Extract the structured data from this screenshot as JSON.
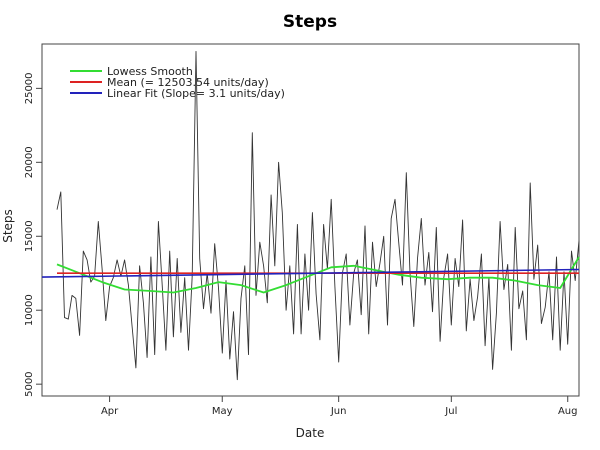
{
  "chart_data": {
    "type": "line",
    "title": "Steps",
    "xlabel": "Date",
    "ylabel": "Steps",
    "xlim": [
      "2013-03-14",
      "2013-08-04"
    ],
    "ylim": [
      4200,
      28000
    ],
    "x_ticks": [
      {
        "date": "2013-04-01",
        "label": "Apr"
      },
      {
        "date": "2013-05-01",
        "label": "May"
      },
      {
        "date": "2013-06-01",
        "label": "Jun"
      },
      {
        "date": "2013-07-01",
        "label": "Jul"
      },
      {
        "date": "2013-08-01",
        "label": "Aug"
      }
    ],
    "y_ticks": [
      5000,
      10000,
      15000,
      20000,
      25000
    ],
    "grid": false,
    "legend_position": "top-left",
    "legend": [
      {
        "label": "Lowess Smooth",
        "color": "#33dd33"
      },
      {
        "label": "Mean (= 12503.54  units/day)",
        "color": "#dd2222"
      },
      {
        "label": "Linear Fit (Slope= 3.1 units/day)",
        "color": "#2222bb"
      }
    ],
    "series": [
      {
        "name": "Steps",
        "color": "#333333",
        "points": [
          [
            "2013-03-18",
            16800
          ],
          [
            "2013-03-19",
            18000
          ],
          [
            "2013-03-20",
            9500
          ],
          [
            "2013-03-21",
            9400
          ],
          [
            "2013-03-22",
            11000
          ],
          [
            "2013-03-23",
            10800
          ],
          [
            "2013-03-24",
            8300
          ],
          [
            "2013-03-25",
            14000
          ],
          [
            "2013-03-26",
            13400
          ],
          [
            "2013-03-27",
            11900
          ],
          [
            "2013-03-28",
            12300
          ],
          [
            "2013-03-29",
            16000
          ],
          [
            "2013-03-30",
            12800
          ],
          [
            "2013-03-31",
            9300
          ],
          [
            "2013-04-01",
            11600
          ],
          [
            "2013-04-02",
            12200
          ],
          [
            "2013-04-03",
            13400
          ],
          [
            "2013-04-04",
            12300
          ],
          [
            "2013-04-05",
            13400
          ],
          [
            "2013-04-06",
            11700
          ],
          [
            "2013-04-07",
            8900
          ],
          [
            "2013-04-08",
            6100
          ],
          [
            "2013-04-09",
            13000
          ],
          [
            "2013-04-10",
            10500
          ],
          [
            "2013-04-11",
            6800
          ],
          [
            "2013-04-12",
            13600
          ],
          [
            "2013-04-13",
            7000
          ],
          [
            "2013-04-14",
            16000
          ],
          [
            "2013-04-15",
            11700
          ],
          [
            "2013-04-16",
            7300
          ],
          [
            "2013-04-17",
            14000
          ],
          [
            "2013-04-18",
            8200
          ],
          [
            "2013-04-19",
            13500
          ],
          [
            "2013-04-20",
            8500
          ],
          [
            "2013-04-21",
            12200
          ],
          [
            "2013-04-22",
            7300
          ],
          [
            "2013-04-23",
            12300
          ],
          [
            "2013-04-24",
            27500
          ],
          [
            "2013-04-25",
            13500
          ],
          [
            "2013-04-26",
            10100
          ],
          [
            "2013-04-27",
            12500
          ],
          [
            "2013-04-28",
            9800
          ],
          [
            "2013-04-29",
            14500
          ],
          [
            "2013-04-30",
            11500
          ],
          [
            "2013-05-01",
            7100
          ],
          [
            "2013-05-02",
            12000
          ],
          [
            "2013-05-03",
            6700
          ],
          [
            "2013-05-04",
            9900
          ],
          [
            "2013-05-05",
            5300
          ],
          [
            "2013-05-06",
            10800
          ],
          [
            "2013-05-07",
            13000
          ],
          [
            "2013-05-08",
            7000
          ],
          [
            "2013-05-09",
            22000
          ],
          [
            "2013-05-10",
            11000
          ],
          [
            "2013-05-11",
            14600
          ],
          [
            "2013-05-12",
            13000
          ],
          [
            "2013-05-13",
            10500
          ],
          [
            "2013-05-14",
            17800
          ],
          [
            "2013-05-15",
            13000
          ],
          [
            "2013-05-16",
            20000
          ],
          [
            "2013-05-17",
            16600
          ],
          [
            "2013-05-18",
            10000
          ],
          [
            "2013-05-19",
            13000
          ],
          [
            "2013-05-20",
            8400
          ],
          [
            "2013-05-21",
            15800
          ],
          [
            "2013-05-22",
            8400
          ],
          [
            "2013-05-23",
            13800
          ],
          [
            "2013-05-24",
            10000
          ],
          [
            "2013-05-25",
            16600
          ],
          [
            "2013-05-26",
            11100
          ],
          [
            "2013-05-27",
            8000
          ],
          [
            "2013-05-28",
            15800
          ],
          [
            "2013-05-29",
            12800
          ],
          [
            "2013-05-30",
            17500
          ],
          [
            "2013-05-31",
            11600
          ],
          [
            "2013-06-01",
            6500
          ],
          [
            "2013-06-02",
            12500
          ],
          [
            "2013-06-03",
            13800
          ],
          [
            "2013-06-04",
            9000
          ],
          [
            "2013-06-05",
            12500
          ],
          [
            "2013-06-06",
            13400
          ],
          [
            "2013-06-07",
            9700
          ],
          [
            "2013-06-08",
            15700
          ],
          [
            "2013-06-09",
            8400
          ],
          [
            "2013-06-10",
            14600
          ],
          [
            "2013-06-11",
            11600
          ],
          [
            "2013-06-12",
            13200
          ],
          [
            "2013-06-13",
            15000
          ],
          [
            "2013-06-14",
            9000
          ],
          [
            "2013-06-15",
            16200
          ],
          [
            "2013-06-16",
            17500
          ],
          [
            "2013-06-17",
            14600
          ],
          [
            "2013-06-18",
            11700
          ],
          [
            "2013-06-19",
            19300
          ],
          [
            "2013-06-20",
            12500
          ],
          [
            "2013-06-21",
            8900
          ],
          [
            "2013-06-22",
            13500
          ],
          [
            "2013-06-23",
            16200
          ],
          [
            "2013-06-24",
            11700
          ],
          [
            "2013-06-25",
            13900
          ],
          [
            "2013-06-26",
            9900
          ],
          [
            "2013-06-27",
            15600
          ],
          [
            "2013-06-28",
            7900
          ],
          [
            "2013-06-29",
            12200
          ],
          [
            "2013-06-30",
            13800
          ],
          [
            "2013-07-01",
            9000
          ],
          [
            "2013-07-02",
            13500
          ],
          [
            "2013-07-03",
            11600
          ],
          [
            "2013-07-04",
            16100
          ],
          [
            "2013-07-05",
            8600
          ],
          [
            "2013-07-06",
            12100
          ],
          [
            "2013-07-07",
            9300
          ],
          [
            "2013-07-08",
            10900
          ],
          [
            "2013-07-09",
            13800
          ],
          [
            "2013-07-10",
            7600
          ],
          [
            "2013-07-11",
            12200
          ],
          [
            "2013-07-12",
            6000
          ],
          [
            "2013-07-13",
            9800
          ],
          [
            "2013-07-14",
            16000
          ],
          [
            "2013-07-15",
            11400
          ],
          [
            "2013-07-16",
            13100
          ],
          [
            "2013-07-17",
            7300
          ],
          [
            "2013-07-18",
            15600
          ],
          [
            "2013-07-19",
            10100
          ],
          [
            "2013-07-20",
            11300
          ],
          [
            "2013-07-21",
            8000
          ],
          [
            "2013-07-22",
            18600
          ],
          [
            "2013-07-23",
            12100
          ],
          [
            "2013-07-24",
            14400
          ],
          [
            "2013-07-25",
            9100
          ],
          [
            "2013-07-26",
            10200
          ],
          [
            "2013-07-27",
            12600
          ],
          [
            "2013-07-28",
            8000
          ],
          [
            "2013-07-29",
            13600
          ],
          [
            "2013-07-30",
            7300
          ],
          [
            "2013-07-31",
            12600
          ],
          [
            "2013-08-01",
            7700
          ],
          [
            "2013-08-02",
            14000
          ],
          [
            "2013-08-03",
            12000
          ],
          [
            "2013-08-04",
            14700
          ]
        ]
      },
      {
        "name": "Lowess Smooth",
        "color": "#33dd33",
        "points": [
          [
            "2013-03-18",
            13100
          ],
          [
            "2013-03-24",
            12500
          ],
          [
            "2013-03-30",
            11900
          ],
          [
            "2013-04-05",
            11400
          ],
          [
            "2013-04-12",
            11300
          ],
          [
            "2013-04-18",
            11200
          ],
          [
            "2013-04-24",
            11500
          ],
          [
            "2013-04-30",
            11900
          ],
          [
            "2013-05-06",
            11700
          ],
          [
            "2013-05-12",
            11200
          ],
          [
            "2013-05-18",
            11700
          ],
          [
            "2013-05-24",
            12300
          ],
          [
            "2013-05-30",
            12900
          ],
          [
            "2013-06-05",
            13000
          ],
          [
            "2013-06-11",
            12700
          ],
          [
            "2013-06-17",
            12400
          ],
          [
            "2013-06-23",
            12200
          ],
          [
            "2013-06-30",
            12100
          ],
          [
            "2013-07-06",
            12200
          ],
          [
            "2013-07-12",
            12200
          ],
          [
            "2013-07-18",
            12000
          ],
          [
            "2013-07-24",
            11700
          ],
          [
            "2013-07-30",
            11500
          ],
          [
            "2013-08-04",
            13600
          ]
        ]
      },
      {
        "name": "Mean (= 12503.54  units/day)",
        "color": "#dd2222",
        "points": [
          [
            "2013-03-18",
            12503.54
          ],
          [
            "2013-08-04",
            12503.54
          ]
        ]
      },
      {
        "name": "Linear Fit (Slope= 3.1 units/day)",
        "color": "#2222bb",
        "points": [
          [
            "2013-03-14",
            12240
          ],
          [
            "2013-08-04",
            12750
          ]
        ]
      }
    ]
  }
}
